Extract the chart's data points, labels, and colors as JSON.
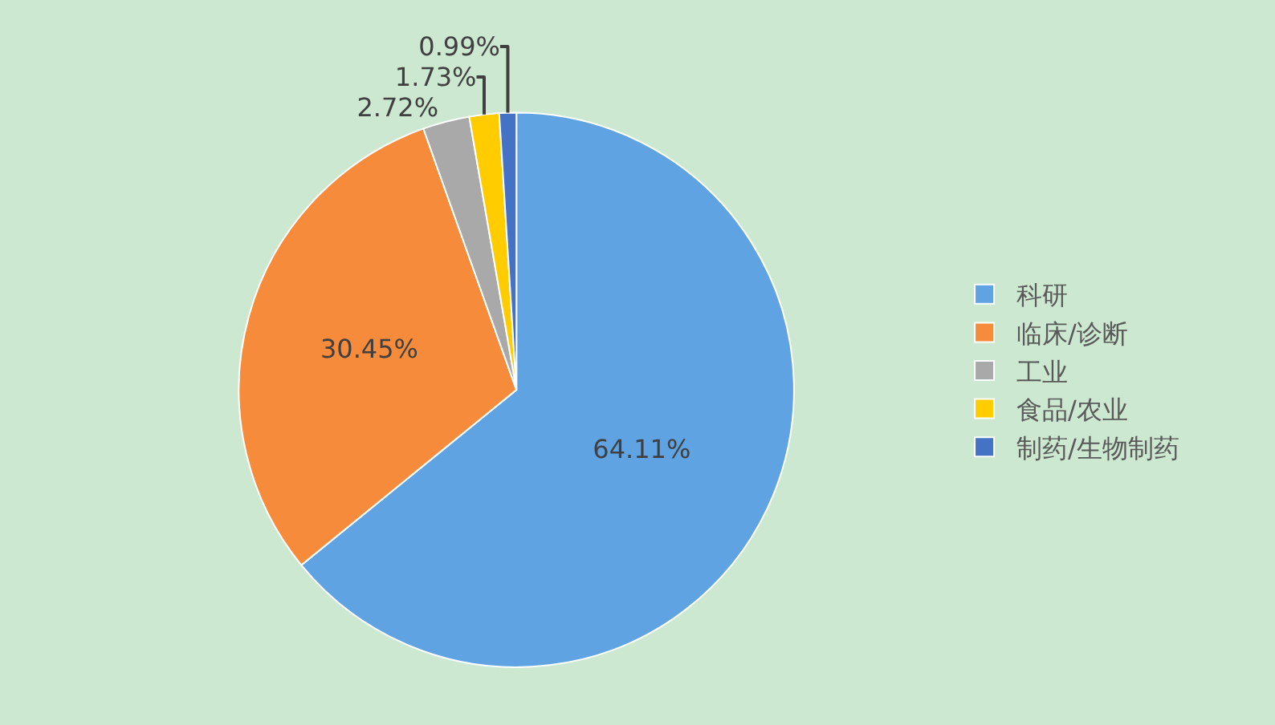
{
  "chart_data": {
    "type": "pie",
    "categories": [
      "科研",
      "临床/诊断",
      "工业",
      "食品/农业",
      "制药/生物制药"
    ],
    "values": [
      64.11,
      30.45,
      2.72,
      1.73,
      0.99
    ],
    "colors": [
      "#5fa3e2",
      "#f68b3c",
      "#a9a9a9",
      "#ffcc00",
      "#4472c4"
    ],
    "value_labels": [
      "64.11%",
      "30.45%",
      "2.72%",
      "1.73%",
      "0.99%"
    ],
    "legend": "right"
  }
}
